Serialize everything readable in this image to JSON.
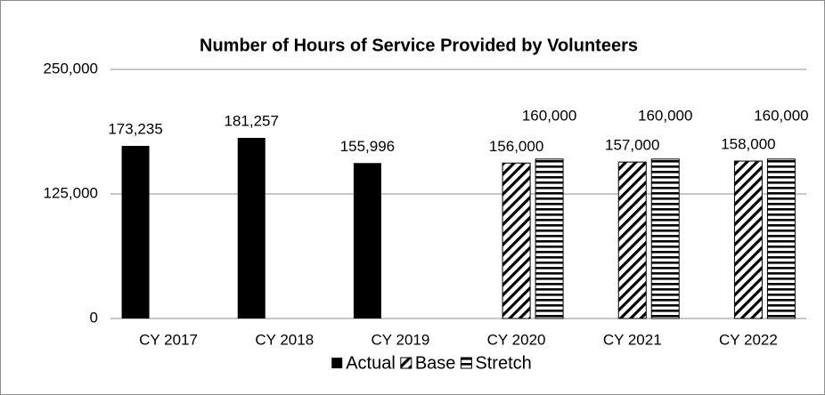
{
  "chart_data": {
    "type": "bar",
    "title": "Number of Hours of Service Provided by Volunteers",
    "categories": [
      "CY 2017",
      "CY 2018",
      "CY 2019",
      "CY 2020",
      "CY 2021",
      "CY 2022"
    ],
    "series": [
      {
        "name": "Actual",
        "color": "#000000",
        "pattern": "solid",
        "values": [
          173235,
          181257,
          155996,
          null,
          null,
          null
        ],
        "value_labels": [
          "173,235",
          "181,257",
          "155,996",
          null,
          null,
          null
        ]
      },
      {
        "name": "Base",
        "color": "#000000",
        "pattern": "diagonal",
        "values": [
          null,
          null,
          null,
          156000,
          157000,
          158000
        ],
        "value_labels": [
          null,
          null,
          null,
          "156,000",
          "157,000",
          "158,000"
        ]
      },
      {
        "name": "Stretch",
        "color": "#000000",
        "pattern": "horizontal",
        "values": [
          null,
          null,
          null,
          160000,
          160000,
          160000
        ],
        "value_labels": [
          null,
          null,
          null,
          "160,000",
          "160,000",
          "160,000"
        ]
      }
    ],
    "ylim": [
      0,
      250000
    ],
    "yticks": [
      0,
      {
        "value": 125000,
        "label": "125,000"
      },
      {
        "value": 250000,
        "label": "250,000"
      }
    ],
    "grid": true,
    "legend": "bottom"
  }
}
